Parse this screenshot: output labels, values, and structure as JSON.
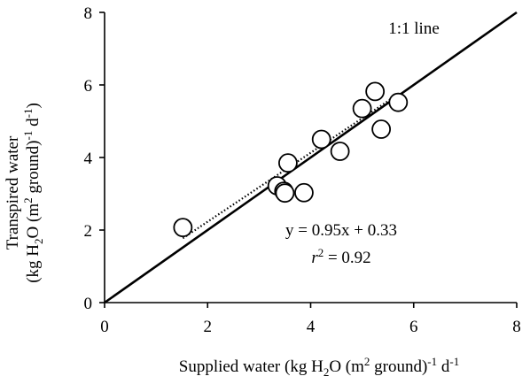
{
  "chart_data": {
    "type": "scatter",
    "title": "",
    "xlabel": {
      "parts": [
        {
          "t": "Supplied water (kg H"
        },
        {
          "t": "2",
          "sub": true
        },
        {
          "t": "O (m"
        },
        {
          "t": "2",
          "sup": true
        },
        {
          "t": " ground)"
        },
        {
          "t": "-1",
          "sup": true
        },
        {
          "t": " d"
        },
        {
          "t": "-1",
          "sup": true
        }
      ]
    },
    "ylabel": {
      "line1": "Transpired water",
      "line2_parts": [
        {
          "t": "(kg H"
        },
        {
          "t": "2",
          "sub": true
        },
        {
          "t": "O (m"
        },
        {
          "t": "2",
          "sup": true
        },
        {
          "t": " ground)"
        },
        {
          "t": "-1",
          "sup": true
        },
        {
          "t": " d"
        },
        {
          "t": "-1",
          "sup": true
        },
        {
          "t": ")"
        }
      ]
    },
    "xlim": [
      0,
      8
    ],
    "ylim": [
      0,
      8
    ],
    "xticks": [
      0,
      2,
      4,
      6,
      8
    ],
    "yticks": [
      0,
      2,
      4,
      6,
      8
    ],
    "grid": false,
    "points": [
      {
        "x": 1.52,
        "y": 2.07
      },
      {
        "x": 3.35,
        "y": 3.22
      },
      {
        "x": 3.48,
        "y": 3.07
      },
      {
        "x": 3.5,
        "y": 3.02
      },
      {
        "x": 3.56,
        "y": 3.85
      },
      {
        "x": 3.87,
        "y": 3.03
      },
      {
        "x": 4.21,
        "y": 4.5
      },
      {
        "x": 4.57,
        "y": 4.17
      },
      {
        "x": 5.0,
        "y": 5.35
      },
      {
        "x": 5.25,
        "y": 5.82
      },
      {
        "x": 5.37,
        "y": 4.78
      },
      {
        "x": 5.7,
        "y": 5.52
      }
    ],
    "one_to_one_line": {
      "from": [
        0,
        0
      ],
      "to": [
        8,
        8
      ],
      "label": "1:1 line"
    },
    "regression": {
      "slope": 0.95,
      "intercept": 0.33,
      "x_range": [
        1.52,
        5.7
      ],
      "equation_label": "y = 0.95x + 0.33",
      "r2_label": {
        "var": "r",
        "sup": "2",
        "rest": " = 0.92"
      }
    }
  }
}
